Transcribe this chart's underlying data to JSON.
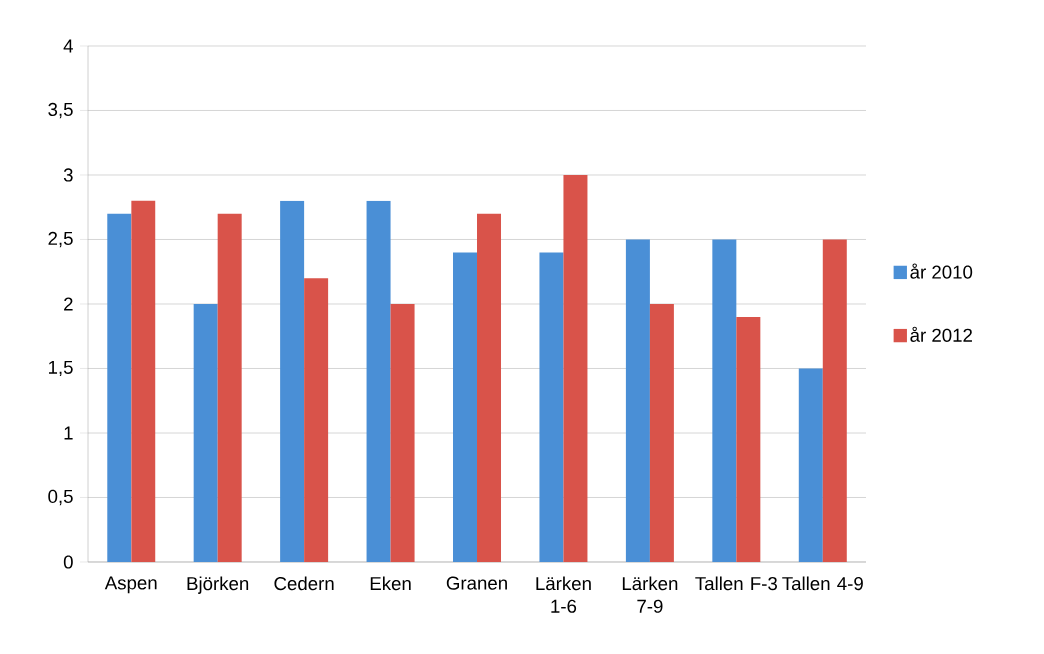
{
  "chart_data": {
    "type": "bar",
    "categories": [
      "Aspen",
      "Björken",
      "Cedern",
      "Eken",
      "Granen",
      "Lärken 1-6",
      "Lärken 7-9",
      "Tallen F-3",
      "Tallen 4-9"
    ],
    "series": [
      {
        "name": "år 2010",
        "color": "#4a8fd6",
        "values": [
          2.7,
          2.0,
          2.8,
          2.8,
          2.4,
          2.4,
          2.5,
          2.5,
          1.5
        ]
      },
      {
        "name": "år 2012",
        "color": "#d9534a",
        "values": [
          2.8,
          2.7,
          2.2,
          2.0,
          2.7,
          3.0,
          2.0,
          1.9,
          2.5
        ]
      }
    ],
    "ylim": [
      0,
      4
    ],
    "yticks": [
      0,
      {
        "value": 0.5,
        "label": "0,5"
      },
      1,
      {
        "value": 1.5,
        "label": "1,5"
      },
      2,
      {
        "value": 2.5,
        "label": "2,5"
      },
      3,
      {
        "value": 3.5,
        "label": "3,5"
      },
      4
    ],
    "grid": "y",
    "legend": "right"
  }
}
